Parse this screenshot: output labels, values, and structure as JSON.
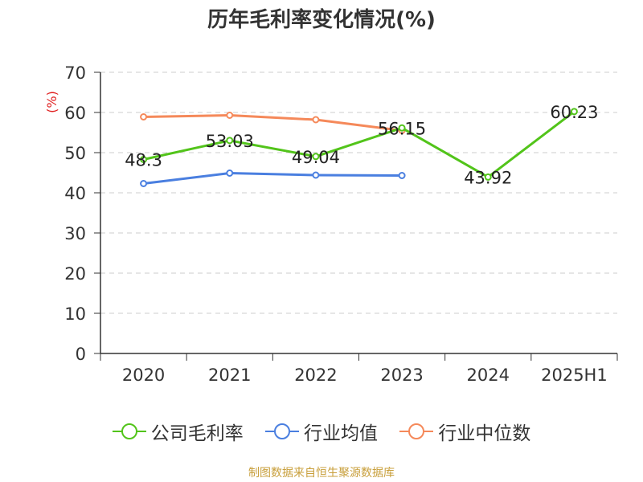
{
  "chart_data": {
    "type": "line",
    "title": "历年毛利率变化情况(%)",
    "ylabel": "(%)",
    "categories": [
      "2020",
      "2021",
      "2022",
      "2023",
      "2024",
      "2025H1"
    ],
    "ylim": [
      0,
      70
    ],
    "yticks": [
      0,
      10,
      20,
      30,
      40,
      50,
      60,
      70
    ],
    "grid": true,
    "legend_position": "bottom",
    "series": [
      {
        "name": "公司毛利率",
        "color": "#52c41a",
        "values": [
          48.3,
          53.03,
          49.04,
          56.15,
          43.92,
          60.23
        ],
        "labels": [
          "48.3",
          "53.03",
          "49.04",
          "56.15",
          "43.92",
          "60.23"
        ]
      },
      {
        "name": "行业均值",
        "color": "#4a7fe0",
        "values": [
          42.3,
          44.9,
          44.4,
          44.3,
          null,
          null
        ]
      },
      {
        "name": "行业中位数",
        "color": "#f5895a",
        "values": [
          58.9,
          59.3,
          58.2,
          55.5,
          null,
          null
        ]
      }
    ]
  },
  "source": "制图数据来自恒生聚源数据库"
}
